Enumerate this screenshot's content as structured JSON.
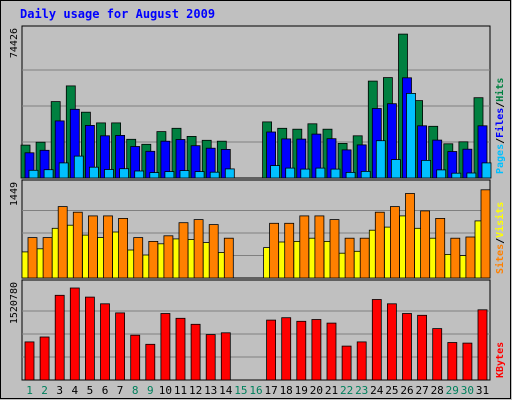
{
  "chart_data": {
    "type": "bar",
    "title": "Daily usage for August 2009",
    "categories": [
      "1",
      "2",
      "3",
      "4",
      "5",
      "6",
      "7",
      "8",
      "9",
      "10",
      "11",
      "12",
      "13",
      "14",
      "15",
      "16",
      "17",
      "18",
      "19",
      "20",
      "21",
      "22",
      "23",
      "24",
      "25",
      "26",
      "27",
      "28",
      "29",
      "30",
      "31"
    ],
    "weekend_days": [
      "1",
      "2",
      "8",
      "9",
      "15",
      "16",
      "22",
      "23",
      "29",
      "30"
    ],
    "colors": {
      "hits": "#008040",
      "files": "#0000ff",
      "pages": "#00c0ff",
      "visits": "#ffff00",
      "sites": "#ff8000",
      "kbytes": "#ff0000",
      "title": "#0000ff",
      "weekday_label": "#000000",
      "weekend_label": "#00805c"
    },
    "panels": [
      {
        "id": "hits_files_pages",
        "ymax_label": "74426",
        "ymax": 74426,
        "legend": [
          {
            "label": "Pages",
            "color": "#00c0ff"
          },
          {
            "label": "/",
            "color": "#000000"
          },
          {
            "label": "Files",
            "color": "#0000ff"
          },
          {
            "label": "/",
            "color": "#000000"
          },
          {
            "label": "Hits",
            "color": "#008040"
          }
        ],
        "series": [
          {
            "name": "Hits",
            "color": "#008040",
            "values": [
              17000,
              18500,
              39500,
              47600,
              34000,
              28500,
              28500,
              20000,
              17400,
              24000,
              25700,
              21500,
              19500,
              19000,
              null,
              null,
              29000,
              25700,
              25200,
              28000,
              25200,
              17900,
              21800,
              50100,
              51900,
              74400,
              40000,
              26700,
              17700,
              18700,
              41500
            ]
          },
          {
            "name": "Files",
            "color": "#0000ff",
            "values": [
              13000,
              14300,
              29500,
              35500,
              27200,
              21800,
              22000,
              16300,
              13800,
              19000,
              19900,
              16700,
              15400,
              14800,
              null,
              null,
              23800,
              20200,
              20100,
              22700,
              20300,
              14500,
              17100,
              35900,
              38400,
              51800,
              27000,
              19600,
              13700,
              14900,
              27000
            ]
          },
          {
            "name": "Pages",
            "color": "#00c0ff",
            "values": [
              4000,
              4300,
              7800,
              11300,
              5600,
              4400,
              4800,
              3600,
              2800,
              3300,
              3800,
              3300,
              3000,
              4700,
              null,
              null,
              6400,
              5100,
              4600,
              5100,
              4600,
              2900,
              3400,
              19300,
              9500,
              43700,
              9100,
              4200,
              2500,
              2600,
              7800
            ]
          }
        ]
      },
      {
        "id": "visits_sites",
        "ymax_label": "1449",
        "ymax": 1449,
        "legend": [
          {
            "label": "Sites",
            "color": "#ff8000"
          },
          {
            "label": "/",
            "color": "#000000"
          },
          {
            "label": "Visits",
            "color": "#ffff00"
          }
        ],
        "series": [
          {
            "name": "Visits",
            "color": "#ffff00",
            "values": [
              420,
              470,
              800,
              850,
              690,
              650,
              740,
              450,
              370,
              550,
              630,
              620,
              570,
              410,
              null,
              null,
              490,
              580,
              590,
              640,
              590,
              400,
              430,
              770,
              820,
              1000,
              800,
              640,
              380,
              360,
              920
            ]
          },
          {
            "name": "Sites",
            "color": "#ff8000",
            "values": [
              650,
              650,
              1150,
              1060,
              1000,
              1000,
              960,
              650,
              590,
              680,
              890,
              940,
              860,
              640,
              null,
              null,
              880,
              880,
              1000,
              1000,
              940,
              640,
              640,
              1060,
              1150,
              1360,
              1080,
              960,
              640,
              660,
              1420
            ]
          }
        ]
      },
      {
        "id": "kbytes",
        "ymax_label": "1520780",
        "ymax": 1520780,
        "legend": [
          {
            "label": "KBytes",
            "color": "#ff0000"
          }
        ],
        "series": [
          {
            "name": "KBytes",
            "color": "#ff0000",
            "values": [
              630000,
              710000,
              1400000,
              1520000,
              1370000,
              1260000,
              1110000,
              740000,
              590000,
              1100000,
              1020000,
              920000,
              750000,
              780000,
              null,
              null,
              990000,
              1030000,
              970000,
              1000000,
              940000,
              560000,
              630000,
              1330000,
              1260000,
              1100000,
              1070000,
              850000,
              620000,
              610000,
              1160000
            ]
          }
        ]
      }
    ]
  }
}
